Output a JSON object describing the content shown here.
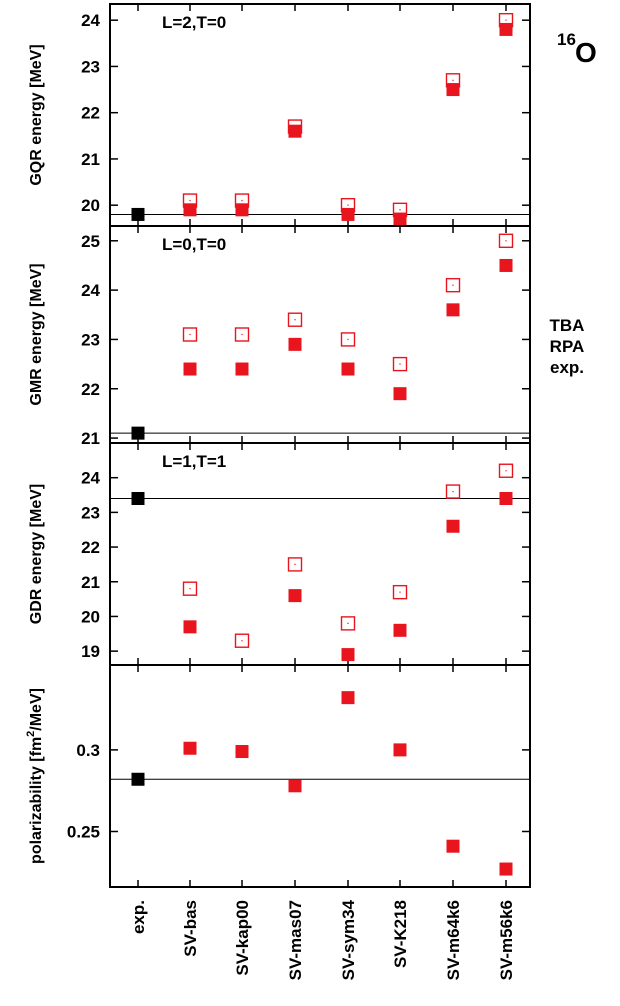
{
  "chart_data": [
    {
      "type": "scatter",
      "panel_label": "L=2,T=0",
      "ylabel": "GQR energy [MeV]",
      "ylim": [
        19.55,
        24.35
      ],
      "yticks": [
        20,
        21,
        22,
        23,
        24
      ],
      "reference_line": 19.8,
      "series": [
        {
          "name": "TBA",
          "marker": "open-square",
          "color": "#e8141e",
          "values": [
            null,
            20.1,
            20.1,
            21.7,
            20.0,
            19.9,
            22.7,
            24.0
          ]
        },
        {
          "name": "RPA",
          "marker": "filled-square",
          "color": "#e8141e",
          "values": [
            null,
            19.9,
            19.9,
            21.6,
            19.8,
            19.7,
            22.5,
            23.8
          ]
        },
        {
          "name": "exp.",
          "marker": "filled-square",
          "color": "#000000",
          "values": [
            19.8,
            null,
            null,
            null,
            null,
            null,
            null,
            null
          ]
        }
      ]
    },
    {
      "type": "scatter",
      "panel_label": "L=0,T=0",
      "ylabel": "GMR energy [MeV]",
      "ylim": [
        20.9,
        25.3
      ],
      "yticks": [
        21,
        22,
        23,
        24,
        25
      ],
      "reference_line": 21.1,
      "series": [
        {
          "name": "TBA",
          "marker": "open-square",
          "color": "#e8141e",
          "values": [
            null,
            23.1,
            23.1,
            23.4,
            23.0,
            22.5,
            24.1,
            25.0
          ]
        },
        {
          "name": "RPA",
          "marker": "filled-square",
          "color": "#e8141e",
          "values": [
            null,
            22.4,
            22.4,
            22.9,
            22.4,
            21.9,
            23.6,
            24.5
          ]
        },
        {
          "name": "exp.",
          "marker": "filled-square",
          "color": "#000000",
          "values": [
            21.1,
            null,
            null,
            null,
            null,
            null,
            null,
            null
          ]
        }
      ]
    },
    {
      "type": "scatter",
      "panel_label": "L=1,T=1",
      "ylabel": "GDR energy [MeV]",
      "ylim": [
        18.6,
        25.0
      ],
      "yticks": [
        19,
        20,
        21,
        22,
        23,
        24
      ],
      "reference_line": 23.4,
      "series": [
        {
          "name": "TBA",
          "marker": "open-square",
          "color": "#e8141e",
          "values": [
            null,
            20.8,
            19.3,
            21.5,
            19.8,
            20.7,
            23.6,
            24.2
          ]
        },
        {
          "name": "RPA",
          "marker": "filled-square",
          "color": "#e8141e",
          "values": [
            null,
            19.7,
            null,
            20.6,
            18.9,
            19.6,
            22.6,
            23.4
          ]
        },
        {
          "name": "exp.",
          "marker": "filled-square",
          "color": "#000000",
          "values": [
            23.4,
            null,
            null,
            null,
            null,
            null,
            null,
            null
          ]
        }
      ]
    },
    {
      "type": "scatter",
      "panel_label": "",
      "ylabel": "polarizability [fm²/MeV]",
      "ylabel_parts": {
        "before": "polarizability [fm",
        "sup": "2",
        "after": "/MeV]"
      },
      "ylim": [
        0.216,
        0.352
      ],
      "yticks": [
        0.25,
        0.3
      ],
      "ytick_labels": [
        "0.25",
        "0.3"
      ],
      "reference_line": 0.282,
      "series": [
        {
          "name": "RPA",
          "marker": "filled-square",
          "color": "#e8141e",
          "values": [
            null,
            0.301,
            0.299,
            0.278,
            0.332,
            0.3,
            0.241,
            0.227
          ]
        },
        {
          "name": "exp.",
          "marker": "filled-square",
          "color": "#000000",
          "values": [
            0.282,
            null,
            null,
            null,
            null,
            null,
            null,
            null
          ]
        }
      ]
    }
  ],
  "categories": [
    "exp.",
    "SV-bas",
    "SV-kap00",
    "SV-mas07",
    "SV-sym34",
    "SV-K218",
    "SV-m64k6",
    "SV-m56k6"
  ],
  "nucleus": {
    "mass_number": "16",
    "symbol": "O"
  },
  "legend": {
    "entries": [
      "TBA",
      "RPA",
      "exp."
    ],
    "placement": "right of second panel"
  }
}
